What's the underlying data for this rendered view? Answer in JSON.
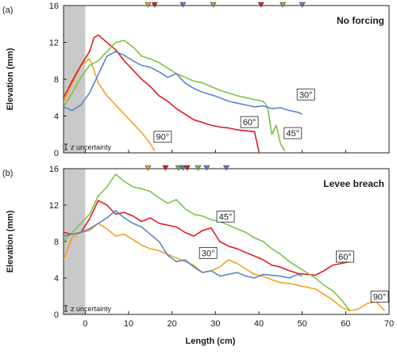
{
  "chart_data": [
    {
      "type": "line",
      "panel_label": "(a)",
      "title": "No forcing",
      "xlabel": "",
      "ylabel": "Elevation (mm)",
      "xlim": [
        -5,
        70
      ],
      "ylim": [
        0,
        16
      ],
      "xticks": [],
      "yticks": [
        "0",
        "4",
        "8",
        "12",
        "16"
      ],
      "uncertainty_label": "z uncertainty",
      "shaded_region": [
        -5,
        0
      ],
      "series": [
        {
          "name": "90°",
          "color": "#f0a21f",
          "label_at": [
            16,
            1.4
          ],
          "x": [
            -5,
            -3,
            -1,
            1,
            2,
            3,
            5,
            7,
            9,
            11,
            13,
            15,
            16
          ],
          "y": [
            5.5,
            7.5,
            9.5,
            10.2,
            9.0,
            7.6,
            6.2,
            5.2,
            4.2,
            3.2,
            2.2,
            1.0,
            0.2
          ]
        },
        {
          "name": "60°",
          "color": "#e31a1c",
          "label_at": [
            36,
            3.0
          ],
          "x": [
            -5,
            -3,
            -1,
            1,
            2,
            3,
            5,
            7,
            9,
            11,
            13,
            15,
            17,
            19,
            21,
            23,
            25,
            27,
            29,
            31,
            33,
            35,
            37,
            39,
            40
          ],
          "y": [
            6.0,
            7.8,
            9.5,
            11.0,
            12.5,
            12.8,
            12.0,
            11.2,
            10.0,
            9.0,
            8.0,
            7.2,
            6.2,
            5.6,
            4.8,
            4.2,
            3.6,
            3.3,
            3.0,
            2.8,
            2.7,
            2.5,
            2.4,
            2.3,
            0.2
          ]
        },
        {
          "name": "45°",
          "color": "#7dc242",
          "label_at": [
            46,
            1.8
          ],
          "x": [
            -5,
            -3,
            -1,
            1,
            3,
            5,
            7,
            9,
            11,
            13,
            15,
            17,
            19,
            21,
            23,
            25,
            27,
            29,
            31,
            33,
            35,
            37,
            39,
            41,
            42,
            43,
            44,
            45,
            46
          ],
          "y": [
            5.0,
            6.5,
            8.2,
            9.5,
            10.0,
            11.0,
            12.0,
            12.2,
            11.5,
            10.5,
            10.2,
            9.8,
            9.2,
            8.6,
            8.2,
            7.8,
            7.6,
            7.2,
            6.8,
            6.5,
            6.2,
            6.0,
            5.8,
            5.6,
            5.0,
            2.0,
            3.0,
            1.0,
            0.2
          ]
        },
        {
          "name": "30°",
          "color": "#5b84c4",
          "label_at": [
            49,
            6.0
          ],
          "x": [
            -5,
            -3,
            -1,
            1,
            3,
            5,
            7,
            9,
            11,
            13,
            15,
            17,
            19,
            21,
            23,
            25,
            27,
            29,
            31,
            33,
            35,
            37,
            39,
            41,
            43,
            45,
            47,
            49,
            50
          ],
          "y": [
            5.0,
            4.6,
            5.2,
            6.5,
            8.5,
            10.5,
            11.0,
            10.6,
            10.0,
            9.5,
            9.3,
            8.8,
            8.2,
            8.6,
            7.6,
            7.0,
            6.6,
            6.3,
            6.0,
            5.6,
            5.4,
            5.2,
            5.0,
            5.1,
            4.8,
            4.9,
            4.6,
            4.4,
            4.2
          ]
        }
      ],
      "top_markers": [
        {
          "x": 14.5,
          "color": "#f0a21f"
        },
        {
          "x": 16.0,
          "color": "#e31a1c"
        },
        {
          "x": 22.5,
          "color": "#5b84c4"
        },
        {
          "x": 29.5,
          "color": "#7dc242"
        },
        {
          "x": 40.5,
          "color": "#e31a1c"
        },
        {
          "x": 45.5,
          "color": "#7dc242"
        },
        {
          "x": 50.0,
          "color": "#5b84c4"
        }
      ]
    },
    {
      "type": "line",
      "panel_label": "(b)",
      "title": "Levee breach",
      "xlabel": "Length (cm)",
      "ylabel": "Elevation (mm)",
      "xlim": [
        -5,
        70
      ],
      "ylim": [
        0,
        16
      ],
      "xticks": [
        "0",
        "10",
        "20",
        "30",
        "40",
        "50",
        "60",
        "70"
      ],
      "xtick_zero_label": "0",
      "yticks": [
        "0",
        "4",
        "8",
        "12",
        "16"
      ],
      "uncertainty_label": "z uncertainty",
      "shaded_region": [
        -5,
        0
      ],
      "series": [
        {
          "name": "90°",
          "color": "#f0a21f",
          "label_at": [
            66,
            1.6
          ],
          "x": [
            -5,
            -3,
            -1,
            1,
            3,
            5,
            7,
            9,
            11,
            13,
            15,
            17,
            19,
            21,
            23,
            25,
            27,
            29,
            31,
            33,
            35,
            37,
            39,
            41,
            43,
            45,
            47,
            49,
            51,
            53,
            55,
            57,
            59,
            61,
            63,
            65,
            67,
            69
          ],
          "y": [
            6.0,
            8.5,
            9.0,
            9.2,
            10.0,
            9.4,
            8.6,
            8.8,
            8.2,
            7.6,
            7.2,
            7.0,
            6.6,
            6.2,
            5.8,
            5.4,
            4.6,
            4.8,
            5.2,
            6.0,
            5.6,
            5.0,
            4.4,
            4.2,
            3.8,
            3.5,
            3.4,
            3.2,
            3.0,
            2.8,
            2.2,
            1.6,
            0.8,
            0.4,
            0.6,
            1.2,
            1.4,
            0.4
          ]
        },
        {
          "name": "60°",
          "color": "#e31a1c",
          "label_at": [
            58,
            6.0
          ],
          "x": [
            -5,
            -3,
            -1,
            1,
            3,
            5,
            7,
            9,
            11,
            13,
            15,
            17,
            19,
            21,
            23,
            25,
            27,
            29,
            31,
            33,
            35,
            37,
            39,
            41,
            43,
            45,
            47,
            49,
            51,
            53,
            55,
            57,
            59,
            61
          ],
          "y": [
            9.0,
            8.8,
            9.0,
            10.5,
            12.5,
            12.0,
            11.0,
            11.2,
            10.8,
            10.2,
            10.6,
            10.0,
            9.8,
            9.6,
            9.0,
            8.6,
            9.2,
            9.5,
            8.0,
            7.5,
            7.2,
            6.8,
            6.4,
            6.0,
            5.4,
            5.2,
            4.8,
            4.5,
            4.4,
            4.3,
            4.8,
            5.4,
            5.6,
            5.8
          ]
        },
        {
          "name": "45°",
          "color": "#7dc242",
          "label_at": [
            30.5,
            10.4
          ],
          "x": [
            -5,
            -3,
            -1,
            1,
            3,
            5,
            7,
            9,
            11,
            13,
            15,
            17,
            19,
            21,
            23,
            25,
            27,
            29,
            31,
            33,
            35,
            37,
            39,
            41,
            43,
            45,
            47,
            49,
            51,
            53,
            55,
            57,
            59,
            61
          ],
          "y": [
            8.0,
            9.0,
            10.0,
            11.0,
            13.0,
            14.0,
            15.4,
            14.6,
            14.0,
            13.8,
            13.5,
            12.8,
            12.2,
            12.6,
            11.6,
            11.0,
            10.8,
            10.4,
            10.2,
            9.8,
            9.4,
            9.0,
            8.4,
            8.0,
            7.2,
            6.6,
            5.8,
            5.2,
            4.6,
            4.0,
            3.2,
            2.6,
            1.6,
            0.4
          ]
        },
        {
          "name": "30°",
          "color": "#5b84c4",
          "label_at": [
            26.5,
            6.4
          ],
          "x": [
            -5,
            -3,
            -1,
            1,
            3,
            5,
            7,
            9,
            11,
            13,
            15,
            17,
            19,
            21,
            23,
            25,
            27,
            29,
            31,
            33,
            35,
            37,
            39,
            41,
            43,
            45,
            47,
            49,
            50
          ],
          "y": [
            8.6,
            8.8,
            9.0,
            9.4,
            10.0,
            10.6,
            11.4,
            10.6,
            10.0,
            9.6,
            8.8,
            8.0,
            6.5,
            5.8,
            6.0,
            5.2,
            4.6,
            4.8,
            4.2,
            4.4,
            4.6,
            4.2,
            4.0,
            4.4,
            4.3,
            4.2,
            4.0,
            4.4,
            4.2
          ]
        }
      ],
      "top_markers": [
        {
          "x": 14.5,
          "color": "#f0a21f"
        },
        {
          "x": 18.5,
          "color": "#e31a1c"
        },
        {
          "x": 21.5,
          "color": "#7dc242"
        },
        {
          "x": 22.5,
          "color": "#5b84c4"
        },
        {
          "x": 23.5,
          "color": "#e31a1c"
        },
        {
          "x": 26.0,
          "color": "#7dc242"
        },
        {
          "x": 28.0,
          "color": "#5b84c4"
        },
        {
          "x": 32.5,
          "color": "#5b84c4"
        }
      ]
    }
  ]
}
